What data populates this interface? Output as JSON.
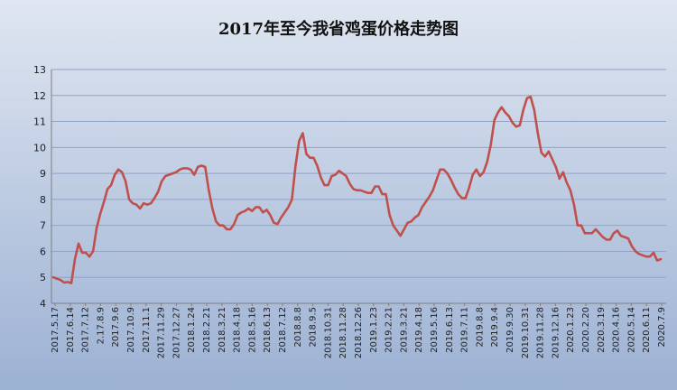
{
  "chart_data": {
    "type": "line",
    "title": "2017年至今我省鸡蛋价格走势图",
    "xlabel": "",
    "ylabel": "",
    "ylim": [
      4,
      13
    ],
    "yticks": [
      4,
      5,
      6,
      7,
      8,
      9,
      10,
      11,
      12,
      13
    ],
    "grid": true,
    "legend": "none",
    "line_color": "#c0504d",
    "tick_labels": [
      "2017.5.17",
      "2017.6.14",
      "2017.7.12",
      "2.17.8.9",
      "2017.9.6",
      "2017.10.9",
      "2017.11.1",
      "2017.11.29",
      "2017.12.27",
      "2018.1.24",
      "2018.2.21",
      "2018.3.21",
      "2018.4.18",
      "2018.5.16",
      "2018.6.13",
      "2018.7.12",
      "2018.8.8",
      "2018.9.5",
      "2018.10.31",
      "2018.11.28",
      "2018.12.26",
      "2019.1.23",
      "2019.2.21",
      "2019.3.21",
      "2019.4.18",
      "2019.5.16",
      "2019.6.13",
      "2019.7.11",
      "2019.8.8",
      "2019.9.4",
      "2019.9.30",
      "2019.10.31",
      "2019.11.28",
      "2019.12.16",
      "2020.1.23",
      "2020.2.20",
      "2020.3.19",
      "2020.4.16",
      "2020.5.14",
      "2020.6.11",
      "2020.7.9"
    ],
    "series": [
      {
        "values": [
          5.0,
          4.95,
          4.9,
          4.8,
          4.82,
          4.78,
          5.7,
          6.3,
          5.95,
          5.95,
          5.8,
          6.0,
          6.9,
          7.45,
          7.9,
          8.4,
          8.55,
          8.95,
          9.15,
          9.05,
          8.7,
          8.0,
          7.85,
          7.8,
          7.65,
          7.85,
          7.8,
          7.85,
          8.05,
          8.3,
          8.7,
          8.9,
          8.95,
          9.0,
          9.05,
          9.15,
          9.2,
          9.2,
          9.15,
          8.95,
          9.25,
          9.3,
          9.25,
          8.35,
          7.65,
          7.15,
          7.0,
          7.0,
          6.85,
          6.85,
          7.05,
          7.4,
          7.5,
          7.55,
          7.65,
          7.55,
          7.7,
          7.7,
          7.5,
          7.6,
          7.4,
          7.1,
          7.05,
          7.3,
          7.5,
          7.7,
          8.0,
          9.3,
          10.25,
          10.55,
          9.75,
          9.6,
          9.6,
          9.3,
          8.85,
          8.55,
          8.55,
          8.9,
          8.95,
          9.1,
          9.0,
          8.9,
          8.6,
          8.4,
          8.35,
          8.35,
          8.3,
          8.25,
          8.25,
          8.5,
          8.5,
          8.2,
          8.2,
          7.4,
          7.0,
          6.8,
          6.6,
          6.85,
          7.1,
          7.15,
          7.3,
          7.4,
          7.7,
          7.9,
          8.1,
          8.35,
          8.75,
          9.15,
          9.15,
          9.0,
          8.75,
          8.45,
          8.2,
          8.05,
          8.05,
          8.45,
          8.95,
          9.15,
          8.9,
          9.05,
          9.45,
          10.1,
          11.05,
          11.35,
          11.55,
          11.35,
          11.2,
          10.95,
          10.8,
          10.85,
          11.45,
          11.9,
          11.95,
          11.45,
          10.55,
          9.8,
          9.65,
          9.85,
          9.55,
          9.25,
          8.8,
          9.05,
          8.65,
          8.35,
          7.8,
          7.0,
          7.0,
          6.7,
          6.7,
          6.7,
          6.85,
          6.7,
          6.55,
          6.45,
          6.45,
          6.7,
          6.8,
          6.6,
          6.55,
          6.5,
          6.2,
          6.0,
          5.9,
          5.85,
          5.8,
          5.8,
          5.95,
          5.65,
          5.7
        ]
      }
    ]
  }
}
